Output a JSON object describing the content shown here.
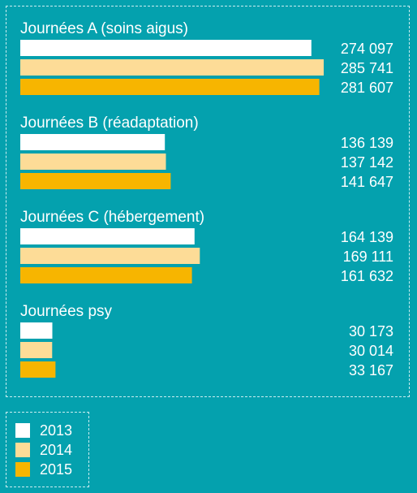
{
  "chart_data": {
    "type": "bar",
    "orientation": "horizontal",
    "grid": false,
    "legend_position": "bottom-left",
    "categories": [
      "Journées A (soins aigus)",
      "Journées B (réadaptation)",
      "Journées C (hébergement)",
      "Journées psy"
    ],
    "series": [
      {
        "name": "2013",
        "color": "#ffffff",
        "values": [
          274097,
          136139,
          164139,
          30173
        ],
        "labels": [
          "274 097",
          "136 139",
          "164 139",
          "30 173"
        ]
      },
      {
        "name": "2014",
        "color": "#fddc97",
        "values": [
          285741,
          137142,
          169111,
          30014
        ],
        "labels": [
          "285 741",
          "137 142",
          "169 111",
          "30 014"
        ]
      },
      {
        "name": "2015",
        "color": "#f7b500",
        "values": [
          281607,
          141647,
          161632,
          33167
        ],
        "labels": [
          "281 607",
          "141 647",
          "161 632",
          "33 167"
        ]
      }
    ],
    "xlim": [
      0,
      285741
    ]
  }
}
